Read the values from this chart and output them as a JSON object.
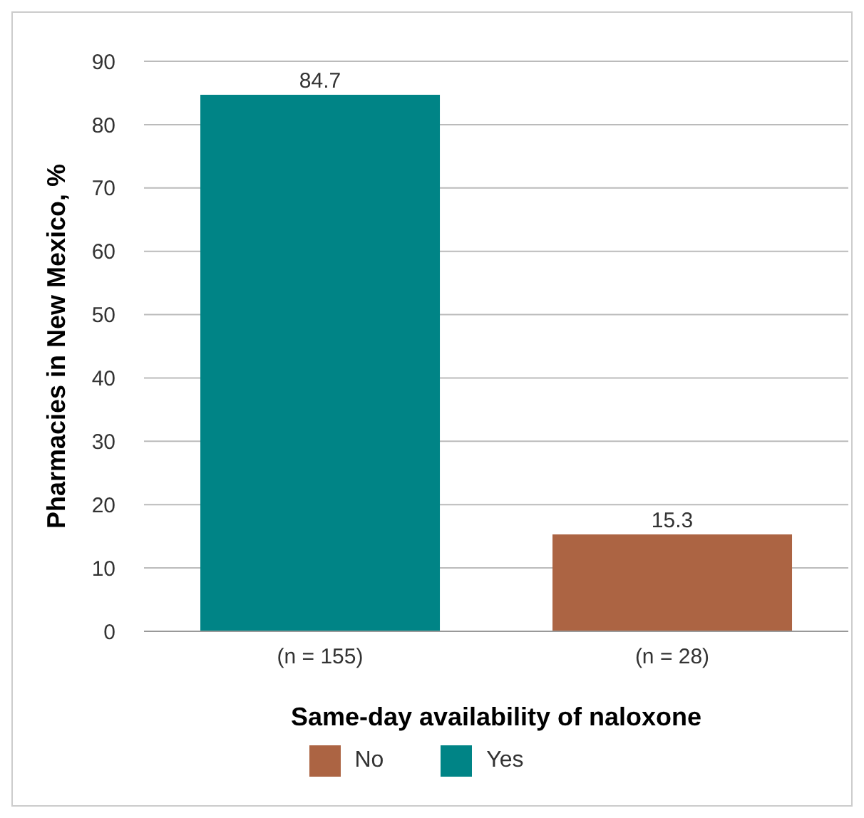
{
  "chart_data": {
    "type": "bar",
    "xlabel": "Same-day availability of naloxone",
    "ylabel": "Pharmacies in New Mexico, %",
    "categories": [
      "(n = 155)",
      "(n = 28)"
    ],
    "series": [
      {
        "name": "Yes",
        "color": "#008486",
        "values": [
          84.7,
          null
        ]
      },
      {
        "name": "No",
        "color": "#ac6443",
        "values": [
          null,
          15.3
        ]
      }
    ],
    "stacked": true,
    "data_labels": true,
    "ylim": [
      0,
      90
    ],
    "yticks": [
      0,
      10,
      20,
      30,
      40,
      50,
      60,
      70,
      80,
      90
    ],
    "grid": "y",
    "legend": "bottom"
  }
}
